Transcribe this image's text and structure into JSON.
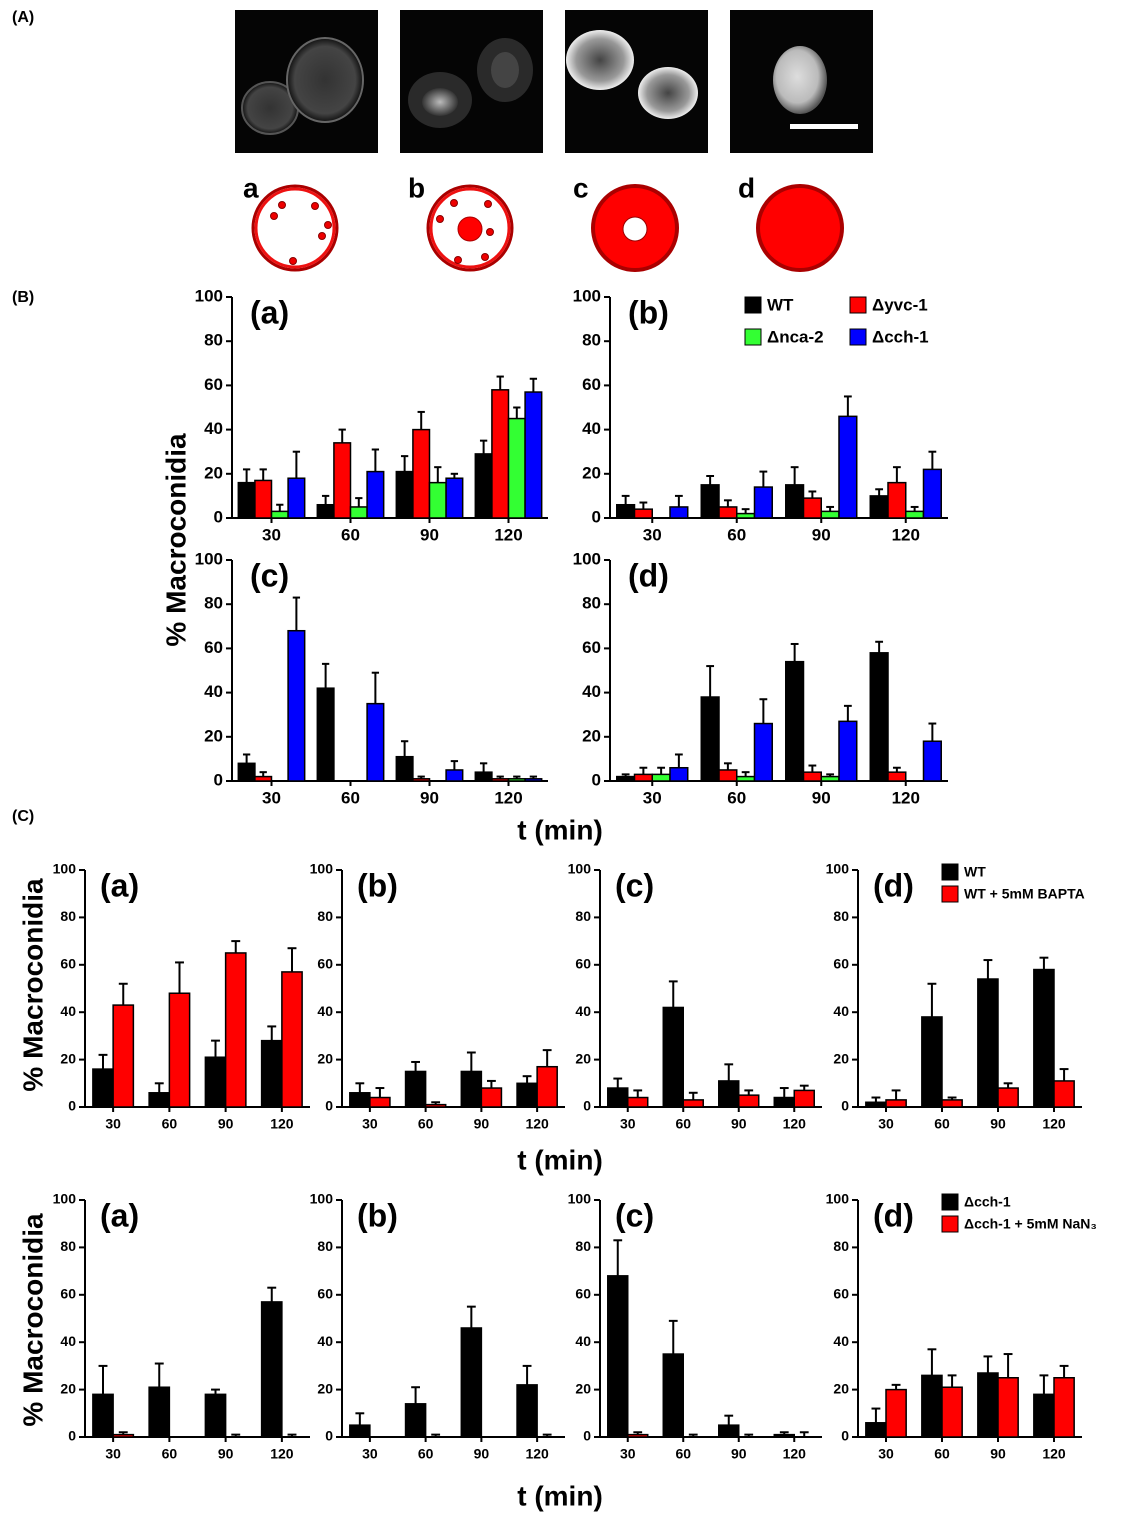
{
  "panel_labels": [
    "(A)",
    "(B)",
    "(C)"
  ],
  "schematic_labels": [
    "a",
    "b",
    "c",
    "d"
  ],
  "figure_labels": [
    {
      "ylabel": "% Macroconidia",
      "xlabel": "t (min)"
    },
    {
      "ylabel": "% Macroconidia",
      "xlabel": "t (min)"
    },
    {
      "ylabel": "% Macroconidia",
      "xlabel": "t (min)"
    }
  ],
  "chart_data": [
    {
      "type": "bar",
      "title": "(a)",
      "categories": [
        "30",
        "60",
        "90",
        "120"
      ],
      "ylim": [
        0,
        100
      ],
      "yticks": [
        0,
        20,
        40,
        60,
        80,
        100
      ],
      "series": [
        {
          "color": "#000000",
          "values": [
            16,
            6,
            21,
            29
          ],
          "errors": [
            6,
            4,
            7,
            6
          ]
        },
        {
          "color": "#ff0000",
          "values": [
            17,
            34,
            40,
            58
          ],
          "errors": [
            5,
            6,
            8,
            6
          ]
        },
        {
          "color": "#33ff33",
          "values": [
            3,
            5,
            16,
            45
          ],
          "errors": [
            3,
            4,
            7,
            5
          ]
        },
        {
          "color": "#0000ff",
          "values": [
            18,
            21,
            18,
            57
          ],
          "errors": [
            12,
            10,
            2,
            6
          ]
        }
      ]
    },
    {
      "type": "bar",
      "title": "(b)",
      "categories": [
        "30",
        "60",
        "90",
        "120"
      ],
      "ylim": [
        0,
        100
      ],
      "yticks": [
        0,
        20,
        40,
        60,
        80,
        100
      ],
      "legend": "upper right",
      "series": [
        {
          "name": "WT",
          "color": "#000000",
          "values": [
            6,
            15,
            15,
            10
          ],
          "errors": [
            4,
            4,
            8,
            3
          ]
        },
        {
          "name": "Δyvc-1",
          "color": "#ff0000",
          "values": [
            4,
            5,
            9,
            16
          ],
          "errors": [
            3,
            3,
            3,
            7
          ]
        },
        {
          "name": "Δnca-2",
          "color": "#33ff33",
          "values": [
            0,
            2,
            3,
            3
          ],
          "errors": [
            0,
            2,
            2,
            2
          ]
        },
        {
          "name": "Δcch-1",
          "color": "#0000ff",
          "values": [
            5,
            14,
            46,
            22
          ],
          "errors": [
            5,
            7,
            9,
            8
          ]
        }
      ]
    },
    {
      "type": "bar",
      "title": "(c)",
      "categories": [
        "30",
        "60",
        "90",
        "120"
      ],
      "ylim": [
        0,
        100
      ],
      "yticks": [
        0,
        20,
        40,
        60,
        80,
        100
      ],
      "series": [
        {
          "color": "#000000",
          "values": [
            8,
            42,
            11,
            4
          ],
          "errors": [
            4,
            11,
            7,
            4
          ]
        },
        {
          "color": "#ff0000",
          "values": [
            2,
            0,
            1,
            1
          ],
          "errors": [
            2,
            0,
            1,
            1
          ]
        },
        {
          "color": "#33ff33",
          "values": [
            0,
            0,
            0,
            1
          ],
          "errors": [
            0,
            0,
            0,
            1
          ]
        },
        {
          "color": "#0000ff",
          "values": [
            68,
            35,
            5,
            1
          ],
          "errors": [
            15,
            14,
            4,
            1
          ]
        }
      ]
    },
    {
      "type": "bar",
      "title": "(d)",
      "categories": [
        "30",
        "60",
        "90",
        "120"
      ],
      "ylim": [
        0,
        100
      ],
      "yticks": [
        0,
        20,
        40,
        60,
        80,
        100
      ],
      "series": [
        {
          "color": "#000000",
          "values": [
            2,
            38,
            54,
            58
          ],
          "errors": [
            1,
            14,
            8,
            5
          ]
        },
        {
          "color": "#ff0000",
          "values": [
            3,
            5,
            4,
            4
          ],
          "errors": [
            3,
            3,
            3,
            2
          ]
        },
        {
          "color": "#33ff33",
          "values": [
            3,
            2,
            2,
            0
          ],
          "errors": [
            3,
            2,
            1,
            0
          ]
        },
        {
          "color": "#0000ff",
          "values": [
            6,
            26,
            27,
            18
          ],
          "errors": [
            6,
            11,
            7,
            8
          ]
        }
      ]
    },
    {
      "type": "bar",
      "title": "(a)",
      "categories": [
        "30",
        "60",
        "90",
        "120"
      ],
      "ylim": [
        0,
        100
      ],
      "yticks": [
        0,
        20,
        40,
        60,
        80,
        100
      ],
      "series": [
        {
          "color": "#000000",
          "values": [
            16,
            6,
            21,
            28
          ],
          "errors": [
            6,
            4,
            7,
            6
          ]
        },
        {
          "color": "#ff0000",
          "values": [
            43,
            48,
            65,
            57
          ],
          "errors": [
            9,
            13,
            5,
            10
          ]
        }
      ]
    },
    {
      "type": "bar",
      "title": "(b)",
      "categories": [
        "30",
        "60",
        "90",
        "120"
      ],
      "ylim": [
        0,
        100
      ],
      "yticks": [
        0,
        20,
        40,
        60,
        80,
        100
      ],
      "series": [
        {
          "color": "#000000",
          "values": [
            6,
            15,
            15,
            10
          ],
          "errors": [
            4,
            4,
            8,
            3
          ]
        },
        {
          "color": "#ff0000",
          "values": [
            4,
            1,
            8,
            17
          ],
          "errors": [
            4,
            1,
            3,
            7
          ]
        }
      ]
    },
    {
      "type": "bar",
      "title": "(c)",
      "categories": [
        "30",
        "60",
        "90",
        "120"
      ],
      "ylim": [
        0,
        100
      ],
      "yticks": [
        0,
        20,
        40,
        60,
        80,
        100
      ],
      "series": [
        {
          "color": "#000000",
          "values": [
            8,
            42,
            11,
            4
          ],
          "errors": [
            4,
            11,
            7,
            4
          ]
        },
        {
          "color": "#ff0000",
          "values": [
            4,
            3,
            5,
            7
          ],
          "errors": [
            3,
            3,
            2,
            2
          ]
        }
      ]
    },
    {
      "type": "bar",
      "title": "(d)",
      "categories": [
        "30",
        "60",
        "90",
        "120"
      ],
      "ylim": [
        0,
        100
      ],
      "yticks": [
        0,
        20,
        40,
        60,
        80,
        100
      ],
      "legend": "upper right",
      "series": [
        {
          "name": "WT",
          "color": "#000000",
          "values": [
            2,
            38,
            54,
            58
          ],
          "errors": [
            2,
            14,
            8,
            5
          ]
        },
        {
          "name": "WT + 5mM BAPTA",
          "color": "#ff0000",
          "values": [
            3,
            3,
            8,
            11
          ],
          "errors": [
            4,
            1,
            2,
            5
          ]
        }
      ]
    },
    {
      "type": "bar",
      "title": "(a)",
      "categories": [
        "30",
        "60",
        "90",
        "120"
      ],
      "ylim": [
        0,
        100
      ],
      "yticks": [
        0,
        20,
        40,
        60,
        80,
        100
      ],
      "series": [
        {
          "color": "#000000",
          "values": [
            18,
            21,
            18,
            57
          ],
          "errors": [
            12,
            10,
            2,
            6
          ]
        },
        {
          "color": "#ff0000",
          "values": [
            1,
            0,
            0,
            0
          ],
          "errors": [
            1,
            0,
            1,
            1
          ]
        }
      ]
    },
    {
      "type": "bar",
      "title": "(b)",
      "categories": [
        "30",
        "60",
        "90",
        "120"
      ],
      "ylim": [
        0,
        100
      ],
      "yticks": [
        0,
        20,
        40,
        60,
        80,
        100
      ],
      "series": [
        {
          "color": "#000000",
          "values": [
            5,
            14,
            46,
            22
          ],
          "errors": [
            5,
            7,
            9,
            8
          ]
        },
        {
          "color": "#ff0000",
          "values": [
            0,
            0,
            0,
            0
          ],
          "errors": [
            0,
            1,
            0,
            1
          ]
        }
      ]
    },
    {
      "type": "bar",
      "title": "(c)",
      "categories": [
        "30",
        "60",
        "90",
        "120"
      ],
      "ylim": [
        0,
        100
      ],
      "yticks": [
        0,
        20,
        40,
        60,
        80,
        100
      ],
      "series": [
        {
          "color": "#000000",
          "values": [
            68,
            35,
            5,
            1
          ],
          "errors": [
            15,
            14,
            4,
            1
          ]
        },
        {
          "color": "#ff0000",
          "values": [
            1,
            0,
            0,
            0
          ],
          "errors": [
            1,
            1,
            1,
            2
          ]
        }
      ]
    },
    {
      "type": "bar",
      "title": "(d)",
      "categories": [
        "30",
        "60",
        "90",
        "120"
      ],
      "ylim": [
        0,
        100
      ],
      "yticks": [
        0,
        20,
        40,
        60,
        80,
        100
      ],
      "legend": "upper right",
      "series": [
        {
          "name": "Δcch-1",
          "color": "#000000",
          "values": [
            6,
            26,
            27,
            18
          ],
          "errors": [
            6,
            11,
            7,
            8
          ]
        },
        {
          "name": "Δcch-1 + 5mM NaN₃",
          "color": "#ff0000",
          "values": [
            20,
            21,
            25,
            25
          ],
          "errors": [
            2,
            5,
            10,
            5
          ]
        }
      ]
    }
  ]
}
